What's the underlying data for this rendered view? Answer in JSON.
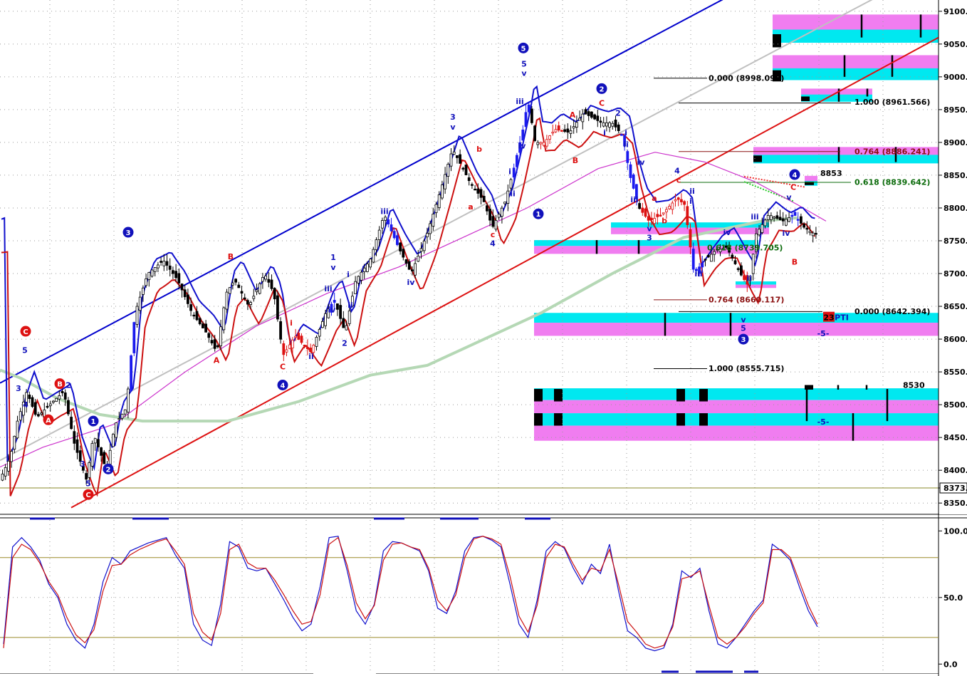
{
  "chart_data": {
    "type": "line",
    "subtype": "candlestick-with-indicators",
    "price_axis": {
      "ticks": [
        "9100.",
        "9050.",
        "9000.",
        "8950.",
        "8900.",
        "8850.",
        "8800.",
        "8750.",
        "8700.",
        "8650.",
        "8600.",
        "8550.",
        "8500.",
        "8450.",
        "8400.",
        "8373.",
        "8350."
      ],
      "values": [
        9100,
        9050,
        9000,
        8950,
        8900,
        8850,
        8800,
        8750,
        8700,
        8650,
        8600,
        8550,
        8500,
        8450,
        8400,
        8373,
        8350
      ],
      "ylim": [
        8335,
        9115
      ],
      "current_price": 8373
    },
    "osc_axis": {
      "ticks": [
        "100.0",
        "50.0",
        "0.0"
      ],
      "values": [
        100,
        50,
        0
      ],
      "ylim": [
        -2,
        105
      ],
      "bands": [
        80,
        20
      ]
    },
    "grid": true,
    "series": [
      {
        "role": "oscillator-fast",
        "color": "#1010cc",
        "values": [
          15,
          88,
          95,
          88,
          78,
          60,
          50,
          30,
          18,
          12,
          30,
          62,
          80,
          75,
          85,
          88,
          91,
          93,
          95,
          82,
          72,
          30,
          18,
          14,
          45,
          92,
          88,
          72,
          70,
          72,
          60,
          48,
          35,
          25,
          30,
          58,
          95,
          96,
          70,
          40,
          30,
          45,
          85,
          92,
          91,
          88,
          85,
          70,
          42,
          38,
          55,
          85,
          95,
          96,
          93,
          88,
          60,
          30,
          20,
          48,
          85,
          92,
          87,
          72,
          60,
          75,
          68,
          90,
          55,
          25,
          20,
          12,
          10,
          12,
          30,
          70,
          65,
          72,
          40,
          15,
          12,
          20,
          30,
          40,
          48,
          90,
          85,
          78,
          58,
          40,
          28
        ]
      },
      {
        "role": "oscillator-slow",
        "color": "#cc1010",
        "values": [
          12,
          80,
          90,
          86,
          76,
          62,
          52,
          35,
          22,
          16,
          26,
          55,
          74,
          75,
          82,
          86,
          89,
          92,
          94,
          85,
          75,
          38,
          24,
          18,
          38,
          86,
          90,
          76,
          72,
          72,
          63,
          52,
          40,
          30,
          32,
          52,
          90,
          95,
          74,
          46,
          34,
          44,
          78,
          90,
          91,
          88,
          86,
          72,
          48,
          40,
          52,
          80,
          94,
          96,
          94,
          90,
          66,
          36,
          24,
          44,
          80,
          90,
          88,
          75,
          63,
          72,
          70,
          86,
          60,
          32,
          24,
          15,
          12,
          14,
          28,
          64,
          66,
          70,
          44,
          20,
          15,
          20,
          28,
          38,
          46,
          86,
          86,
          80,
          62,
          44,
          30
        ]
      },
      {
        "role": "long-moving-average",
        "color": "#b5d8b5",
        "x": [
          0,
          30,
          80,
          140,
          200,
          320,
          420,
          520,
          600,
          680,
          760,
          860,
          960,
          1070,
          1120
        ],
        "values": [
          8553,
          8540,
          8510,
          8485,
          8475,
          8475,
          8505,
          8545,
          8560,
          8600,
          8640,
          8700,
          8755,
          8780,
          8785
        ]
      },
      {
        "role": "mid-moving-average",
        "color": "#cc33cc",
        "x": [
          0,
          60,
          160,
          260,
          360,
          460,
          560,
          660,
          740,
          840,
          920,
          990,
          1060,
          1120,
          1160
        ],
        "values": [
          8405,
          8435,
          8470,
          8550,
          8620,
          8670,
          8710,
          8760,
          8800,
          8860,
          8885,
          8870,
          8840,
          8805,
          8780
        ]
      },
      {
        "role": "envelope-upper",
        "color": "#1010cc"
      },
      {
        "role": "envelope-lower",
        "color": "#cc1010"
      }
    ],
    "trend_lines": [
      {
        "name": "channel-upper",
        "color": "#0000cc"
      },
      {
        "name": "channel-lower",
        "color": "#dd1111"
      },
      {
        "name": "channel-mid",
        "color": "#c0c0c0"
      }
    ],
    "fib_levels": [
      {
        "label": "0.000 (8998.097)",
        "price": 8998.097,
        "color": "#000000"
      },
      {
        "label": "1.000 (8961.566)",
        "price": 8961.566,
        "color": "#000000"
      },
      {
        "label": "0.764 (8886.241)",
        "price": 8886.241,
        "color": "#8b1010"
      },
      {
        "label": "0.618 (8839.642)",
        "price": 8839.642,
        "color": "#0b6b0b"
      },
      {
        "label": "0.618 (8739.705)",
        "price": 8739.705,
        "color": "#0b6b0b"
      },
      {
        "label": "0.764 (8660.117)",
        "price": 8660.117,
        "color": "#8b1010"
      },
      {
        "label": "0.000 (8642.394)",
        "price": 8642.394,
        "color": "#000000"
      },
      {
        "label": "1.000 (8555.715)",
        "price": 8555.715,
        "color": "#000000"
      }
    ],
    "price_labels": [
      {
        "text": "8853",
        "price": 8853
      },
      {
        "text": "8530",
        "price": 8530
      }
    ],
    "annotations": [
      {
        "text": "5",
        "color": "blue",
        "x": 35,
        "price": 8583,
        "circle": false
      },
      {
        "text": "C",
        "color": "red",
        "x": 36,
        "price": 8612,
        "circle": true
      },
      {
        "text": "B",
        "color": "red",
        "x": 84,
        "price": 8532,
        "circle": true
      },
      {
        "text": "A",
        "color": "red",
        "x": 68,
        "price": 8477,
        "circle": true
      },
      {
        "text": "3",
        "color": "blue",
        "x": 26,
        "price": 8525,
        "circle": false
      },
      {
        "text": "2",
        "color": "blue",
        "x": 96,
        "price": 8530,
        "circle": false
      },
      {
        "text": "4",
        "color": "blue",
        "x": 36,
        "price": 8500,
        "circle": false
      },
      {
        "text": "3",
        "color": "blue",
        "x": 116,
        "price": 8410,
        "circle": false
      },
      {
        "text": "5",
        "color": "blue",
        "x": 124,
        "price": 8380,
        "circle": false
      },
      {
        "text": "1",
        "color": "blue",
        "x": 131,
        "price": 8475,
        "circle": true
      },
      {
        "text": "2",
        "color": "blue",
        "x": 152,
        "price": 8402,
        "circle": true
      },
      {
        "text": "C",
        "color": "red",
        "x": 124,
        "price": 8363,
        "circle": true
      },
      {
        "text": "3",
        "color": "blue",
        "x": 180,
        "price": 8763,
        "circle": true
      },
      {
        "text": "B",
        "color": "red",
        "x": 324,
        "price": 8726,
        "circle": false
      },
      {
        "text": "A",
        "color": "red",
        "x": 304,
        "price": 8568,
        "circle": false
      },
      {
        "text": "C",
        "color": "red",
        "x": 397,
        "price": 8558,
        "circle": false
      },
      {
        "text": "4",
        "color": "blue",
        "x": 397,
        "price": 8530,
        "circle": true
      },
      {
        "text": "i",
        "color": "red",
        "x": 409,
        "price": 8625,
        "circle": false
      },
      {
        "text": "ii",
        "color": "blue",
        "x": 437,
        "price": 8574,
        "circle": false
      },
      {
        "text": "iii",
        "color": "blue",
        "x": 461,
        "price": 8677,
        "circle": false
      },
      {
        "text": "iv",
        "color": "blue",
        "x": 466,
        "price": 8645,
        "circle": false
      },
      {
        "text": "ii",
        "color": "blue",
        "x": 492,
        "price": 8652,
        "circle": false
      },
      {
        "text": "i",
        "color": "blue",
        "x": 489,
        "price": 8699,
        "circle": false
      },
      {
        "text": "1",
        "color": "blue",
        "x": 468,
        "price": 8725,
        "circle": false
      },
      {
        "text": "v",
        "color": "blue",
        "x": 468,
        "price": 8710,
        "circle": false
      },
      {
        "text": "2",
        "color": "blue",
        "x": 484,
        "price": 8594,
        "circle": false
      },
      {
        "text": "iii",
        "color": "blue",
        "x": 540,
        "price": 8795,
        "circle": false
      },
      {
        "text": "iv",
        "color": "blue",
        "x": 577,
        "price": 8687,
        "circle": false
      },
      {
        "text": "3",
        "color": "blue",
        "x": 636,
        "price": 8939,
        "circle": false
      },
      {
        "text": "v",
        "color": "blue",
        "x": 636,
        "price": 8924,
        "circle": false
      },
      {
        "text": "b",
        "color": "red",
        "x": 673,
        "price": 8890,
        "circle": false
      },
      {
        "text": "a",
        "color": "red",
        "x": 661,
        "price": 8802,
        "circle": false
      },
      {
        "text": "c",
        "color": "red",
        "x": 692,
        "price": 8760,
        "circle": false
      },
      {
        "text": "4",
        "color": "blue",
        "x": 692,
        "price": 8746,
        "circle": false
      },
      {
        "text": "i",
        "color": "blue",
        "x": 716,
        "price": 8856,
        "circle": false
      },
      {
        "text": "ii",
        "color": "blue",
        "x": 720,
        "price": 8822,
        "circle": false
      },
      {
        "text": "iii",
        "color": "blue",
        "x": 730,
        "price": 8963,
        "circle": false
      },
      {
        "text": "iv",
        "color": "blue",
        "x": 733,
        "price": 8895,
        "circle": false
      },
      {
        "text": "5",
        "color": "blue",
        "x": 735,
        "price": 9044,
        "circle": true
      },
      {
        "text": "5",
        "color": "blue",
        "x": 736,
        "price": 9020,
        "circle": false
      },
      {
        "text": "v",
        "color": "blue",
        "x": 736,
        "price": 9006,
        "circle": false
      },
      {
        "text": "1",
        "color": "blue",
        "x": 756,
        "price": 8791,
        "circle": true
      },
      {
        "text": "A",
        "color": "red",
        "x": 804,
        "price": 8942,
        "circle": false
      },
      {
        "text": "B",
        "color": "red",
        "x": 808,
        "price": 8873,
        "circle": false
      },
      {
        "text": "2",
        "color": "blue",
        "x": 845,
        "price": 8982,
        "circle": true
      },
      {
        "text": "C",
        "color": "red",
        "x": 845,
        "price": 8960,
        "circle": false
      },
      {
        "text": "2",
        "color": "blue",
        "x": 868,
        "price": 8945,
        "circle": false
      },
      {
        "text": "i",
        "color": "blue",
        "x": 849,
        "price": 8915,
        "circle": false
      },
      {
        "text": "i",
        "color": "blue",
        "x": 879,
        "price": 8915,
        "circle": false
      },
      {
        "text": "ii",
        "color": "blue",
        "x": 879,
        "price": 8897,
        "circle": false
      },
      {
        "text": "iv",
        "color": "blue",
        "x": 900,
        "price": 8870,
        "circle": false
      },
      {
        "text": "iii",
        "color": "blue",
        "x": 891,
        "price": 8813,
        "circle": false
      },
      {
        "text": "v",
        "color": "blue",
        "x": 912,
        "price": 8769,
        "circle": false
      },
      {
        "text": "3",
        "color": "blue",
        "x": 912,
        "price": 8755,
        "circle": false
      },
      {
        "text": "a",
        "color": "red",
        "x": 919,
        "price": 8815,
        "circle": false
      },
      {
        "text": "b",
        "color": "red",
        "x": 933,
        "price": 8781,
        "circle": false
      },
      {
        "text": "4",
        "color": "blue",
        "x": 951,
        "price": 8857,
        "circle": false
      },
      {
        "text": "c",
        "color": "red",
        "x": 953,
        "price": 8843,
        "circle": false
      },
      {
        "text": "i",
        "color": "blue",
        "x": 970,
        "price": 8811,
        "circle": false
      },
      {
        "text": "ii",
        "color": "blue",
        "x": 972,
        "price": 8826,
        "circle": false
      },
      {
        "text": "iii",
        "color": "blue",
        "x": 981,
        "price": 8700,
        "circle": false
      },
      {
        "text": "iv",
        "color": "blue",
        "x": 1021,
        "price": 8763,
        "circle": false
      },
      {
        "text": "ii",
        "color": "blue",
        "x": 1052,
        "price": 8693,
        "circle": false
      },
      {
        "text": "iii",
        "color": "blue",
        "x": 1060,
        "price": 8787,
        "circle": false
      },
      {
        "text": "iv",
        "color": "blue",
        "x": 1104,
        "price": 8762,
        "circle": false
      },
      {
        "text": "v",
        "color": "blue",
        "x": 1108,
        "price": 8817,
        "circle": false
      },
      {
        "text": "C",
        "color": "red",
        "x": 1114,
        "price": 8832,
        "circle": false
      },
      {
        "text": "v",
        "color": "blue",
        "x": 1044,
        "price": 8630,
        "circle": false
      },
      {
        "text": "5",
        "color": "blue",
        "x": 1044,
        "price": 8617,
        "circle": false
      },
      {
        "text": "3",
        "color": "blue",
        "x": 1044,
        "price": 8600,
        "circle": true
      },
      {
        "text": "4",
        "color": "blue",
        "x": 1116,
        "price": 8851,
        "circle": true
      },
      {
        "text": "B",
        "color": "red",
        "x": 1116,
        "price": 8718,
        "circle": false
      },
      {
        "text": "-5-",
        "color": "blue",
        "x": 1156,
        "price": 8609,
        "circle": false
      },
      {
        "text": "-5-",
        "color": "blue",
        "x": 1156,
        "price": 8474,
        "circle": false
      },
      {
        "text": "23",
        "color": "red-badge",
        "x": 1164,
        "price": 8633,
        "circle": false
      },
      {
        "text": "PTI",
        "color": "blue",
        "x": 1182,
        "price": 8633,
        "circle": false
      }
    ]
  }
}
